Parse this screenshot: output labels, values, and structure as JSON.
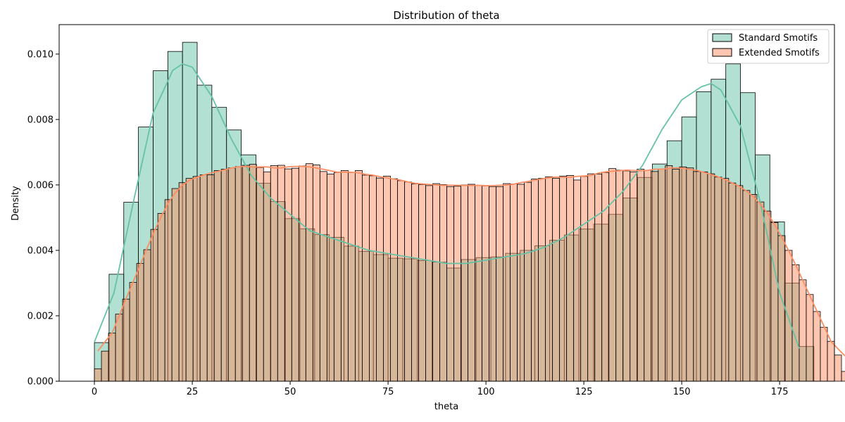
{
  "chart_data": {
    "type": "histogram",
    "title": "Distribution of theta",
    "xlabel": "theta",
    "ylabel": "Density",
    "xlim": [
      -9,
      189
    ],
    "ylim": [
      0,
      0.0109
    ],
    "x_ticks": [
      0,
      25,
      50,
      75,
      100,
      125,
      150,
      175
    ],
    "y_ticks": [
      0.0,
      0.002,
      0.004,
      0.006,
      0.008,
      0.01
    ],
    "y_tick_labels": [
      "0.000",
      "0.002",
      "0.004",
      "0.006",
      "0.008",
      "0.010"
    ],
    "legend_position": "top-right",
    "series": [
      {
        "name": "Standard Smotifs",
        "color": "#66c2a5",
        "fill_color": "#b3e0d2",
        "bin_start": 0,
        "bin_width": 3.75,
        "values": [
          0.00118,
          0.00327,
          0.00547,
          0.00777,
          0.00949,
          0.01008,
          0.01036,
          0.00905,
          0.00837,
          0.00768,
          0.00692,
          0.00605,
          0.00549,
          0.00497,
          0.00466,
          0.00448,
          0.0044,
          0.00413,
          0.00397,
          0.00387,
          0.00376,
          0.00374,
          0.00369,
          0.00364,
          0.00346,
          0.00372,
          0.00378,
          0.0038,
          0.00391,
          0.004,
          0.00414,
          0.00431,
          0.00447,
          0.00465,
          0.0048,
          0.0051,
          0.0056,
          0.00623,
          0.00664,
          0.00735,
          0.00808,
          0.00885,
          0.00923,
          0.0097,
          0.00882,
          0.00692,
          0.00487,
          0.003,
          0.00106
        ],
        "kde": [
          [
            0,
            0.0012
          ],
          [
            5,
            0.0027
          ],
          [
            10,
            0.0055
          ],
          [
            15,
            0.0082
          ],
          [
            20,
            0.0095
          ],
          [
            22.5,
            0.0097
          ],
          [
            25,
            0.0096
          ],
          [
            30,
            0.0087
          ],
          [
            35,
            0.0074
          ],
          [
            40,
            0.0063
          ],
          [
            45,
            0.0056
          ],
          [
            50,
            0.0051
          ],
          [
            55,
            0.0046
          ],
          [
            60,
            0.0044
          ],
          [
            65,
            0.0042
          ],
          [
            70,
            0.004
          ],
          [
            75,
            0.0039
          ],
          [
            80,
            0.0038
          ],
          [
            85,
            0.0037
          ],
          [
            90,
            0.0036
          ],
          [
            95,
            0.0036
          ],
          [
            100,
            0.0037
          ],
          [
            105,
            0.0038
          ],
          [
            110,
            0.0039
          ],
          [
            115,
            0.0041
          ],
          [
            120,
            0.0044
          ],
          [
            125,
            0.0048
          ],
          [
            130,
            0.0052
          ],
          [
            135,
            0.0058
          ],
          [
            140,
            0.0066
          ],
          [
            145,
            0.0077
          ],
          [
            150,
            0.0086
          ],
          [
            155,
            0.009
          ],
          [
            157.5,
            0.0091
          ],
          [
            160,
            0.0089
          ],
          [
            165,
            0.0078
          ],
          [
            170,
            0.0055
          ],
          [
            175,
            0.0027
          ],
          [
            180,
            0.001
          ]
        ]
      },
      {
        "name": "Extended Smotifs",
        "color": "#fc8d62",
        "fill_color": "#fec6b0",
        "bin_start": 0,
        "bin_width": 1.8,
        "values": [
          0.00038,
          0.00092,
          0.00147,
          0.00205,
          0.00251,
          0.00302,
          0.0036,
          0.00402,
          0.00464,
          0.00513,
          0.00555,
          0.00589,
          0.00607,
          0.0062,
          0.00626,
          0.00631,
          0.00631,
          0.00644,
          0.00648,
          0.00652,
          0.00656,
          0.0066,
          0.00663,
          0.00653,
          0.0064,
          0.00659,
          0.0066,
          0.00649,
          0.00651,
          0.00658,
          0.00665,
          0.00661,
          0.00641,
          0.00633,
          0.00638,
          0.00644,
          0.00638,
          0.00644,
          0.0063,
          0.00628,
          0.00621,
          0.00627,
          0.00619,
          0.00613,
          0.00609,
          0.00603,
          0.00601,
          0.00598,
          0.00604,
          0.00601,
          0.00595,
          0.00596,
          0.006,
          0.00602,
          0.00599,
          0.00597,
          0.00595,
          0.00595,
          0.00604,
          0.00603,
          0.00602,
          0.00608,
          0.00618,
          0.0062,
          0.00625,
          0.0062,
          0.00627,
          0.00629,
          0.00615,
          0.00626,
          0.00634,
          0.00633,
          0.00638,
          0.0065,
          0.00645,
          0.00643,
          0.0064,
          0.00648,
          0.00645,
          0.00641,
          0.00648,
          0.00659,
          0.00648,
          0.00655,
          0.00652,
          0.00641,
          0.0064,
          0.00634,
          0.00624,
          0.0062,
          0.00606,
          0.00598,
          0.00583,
          0.00571,
          0.00548,
          0.0052,
          0.00485,
          0.00445,
          0.004,
          0.00356,
          0.0031,
          0.00265,
          0.00213,
          0.00165,
          0.00122,
          0.0008,
          0.0003
        ]
      }
    ]
  }
}
